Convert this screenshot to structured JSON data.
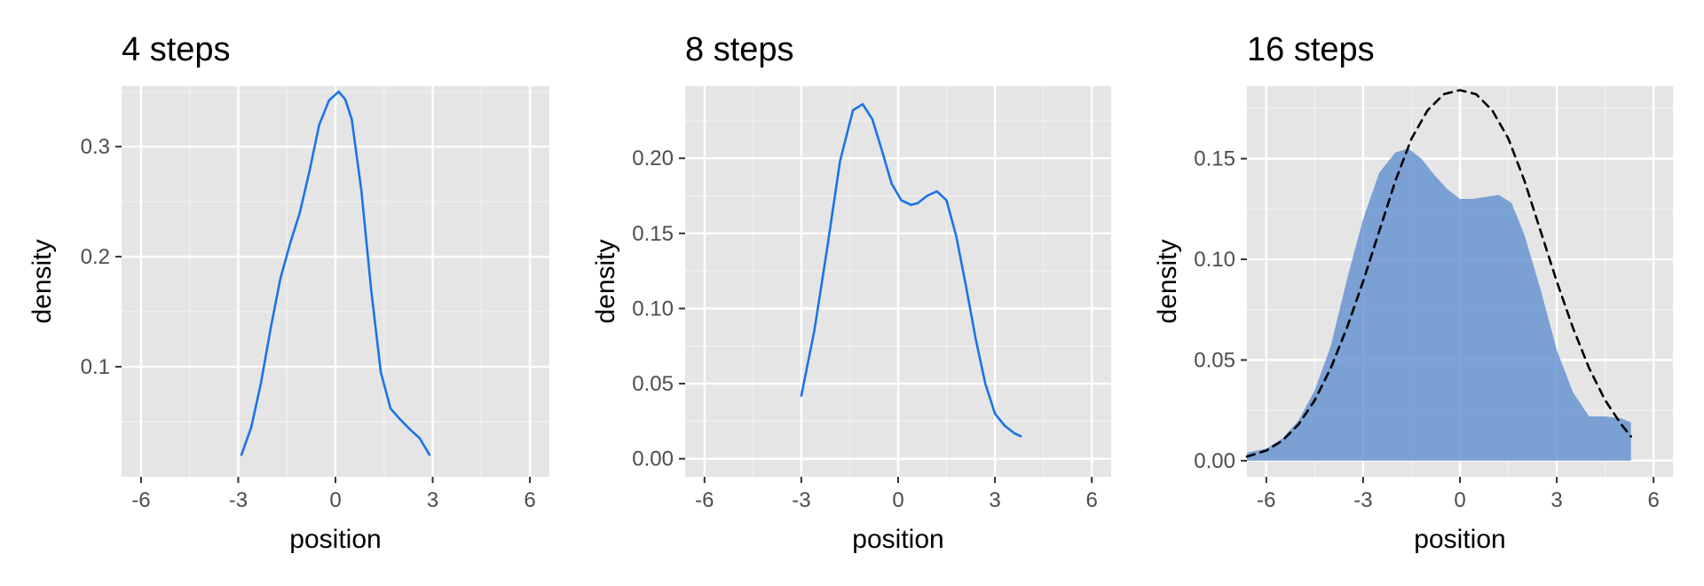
{
  "chart_data": [
    {
      "type": "line",
      "title": "4 steps",
      "xlabel": "position",
      "ylabel": "density",
      "xlim": [
        -6.6,
        6.6
      ],
      "ylim": [
        0.0,
        0.355
      ],
      "xticks": [
        -6,
        -3,
        0,
        3,
        6
      ],
      "xtick_labels": [
        "-6",
        "-3",
        "0",
        "3",
        "6"
      ],
      "yticks": [
        0.1,
        0.2,
        0.3
      ],
      "ytick_labels": [
        "0.1",
        "0.2",
        "0.3"
      ],
      "grid": true,
      "series": [
        {
          "color": "#1a73e8",
          "fill": false,
          "x": [
            -2.9,
            -2.6,
            -2.3,
            -2.0,
            -1.7,
            -1.4,
            -1.1,
            -0.8,
            -0.5,
            -0.2,
            0.1,
            0.3,
            0.5,
            0.8,
            1.1,
            1.4,
            1.7,
            2.0,
            2.3,
            2.6,
            2.9
          ],
          "y": [
            0.02,
            0.045,
            0.085,
            0.135,
            0.18,
            0.212,
            0.24,
            0.278,
            0.32,
            0.342,
            0.35,
            0.343,
            0.325,
            0.26,
            0.17,
            0.095,
            0.062,
            0.052,
            0.043,
            0.035,
            0.02
          ]
        }
      ]
    },
    {
      "type": "line",
      "title": "8 steps",
      "xlabel": "position",
      "ylabel": "density",
      "xlim": [
        -6.6,
        6.6
      ],
      "ylim": [
        -0.012,
        0.248
      ],
      "xticks": [
        -6,
        -3,
        0,
        3,
        6
      ],
      "xtick_labels": [
        "-6",
        "-3",
        "0",
        "3",
        "6"
      ],
      "yticks": [
        0.0,
        0.05,
        0.1,
        0.15,
        0.2
      ],
      "ytick_labels": [
        "0.00",
        "0.05",
        "0.10",
        "0.15",
        "0.20"
      ],
      "grid": true,
      "series": [
        {
          "color": "#1a73e8",
          "fill": false,
          "x": [
            -3.0,
            -2.6,
            -2.2,
            -1.8,
            -1.4,
            -1.1,
            -0.8,
            -0.5,
            -0.2,
            0.1,
            0.4,
            0.6,
            0.9,
            1.2,
            1.5,
            1.8,
            2.1,
            2.4,
            2.7,
            3.0,
            3.3,
            3.6,
            3.8
          ],
          "y": [
            0.042,
            0.085,
            0.14,
            0.198,
            0.232,
            0.236,
            0.226,
            0.205,
            0.183,
            0.172,
            0.169,
            0.17,
            0.175,
            0.178,
            0.172,
            0.148,
            0.115,
            0.08,
            0.05,
            0.03,
            0.022,
            0.017,
            0.015
          ]
        }
      ]
    },
    {
      "type": "area",
      "title": "16 steps",
      "xlabel": "position",
      "ylabel": "density",
      "xlim": [
        -6.6,
        6.6
      ],
      "ylim": [
        -0.008,
        0.186
      ],
      "xticks": [
        -6,
        -3,
        0,
        3,
        6
      ],
      "xtick_labels": [
        "-6",
        "-3",
        "0",
        "3",
        "6"
      ],
      "yticks": [
        0.0,
        0.05,
        0.1,
        0.15
      ],
      "ytick_labels": [
        "0.00",
        "0.05",
        "0.10",
        "0.15"
      ],
      "grid": true,
      "series": [
        {
          "color": "#5f8fd0",
          "fill": true,
          "x": [
            -6.6,
            -6.0,
            -5.5,
            -5.0,
            -4.5,
            -4.0,
            -3.5,
            -3.0,
            -2.5,
            -2.0,
            -1.6,
            -1.2,
            -0.8,
            -0.4,
            0.0,
            0.4,
            0.8,
            1.2,
            1.6,
            2.0,
            2.5,
            3.0,
            3.5,
            4.0,
            4.5,
            5.0,
            5.3
          ],
          "y": [
            0.004,
            0.006,
            0.011,
            0.02,
            0.035,
            0.057,
            0.09,
            0.12,
            0.143,
            0.153,
            0.155,
            0.15,
            0.142,
            0.135,
            0.13,
            0.13,
            0.131,
            0.132,
            0.128,
            0.112,
            0.085,
            0.055,
            0.034,
            0.022,
            0.022,
            0.021,
            0.019
          ]
        },
        {
          "color": "#000000",
          "fill": false,
          "dashed": true,
          "x": [
            -6.6,
            -6.0,
            -5.5,
            -5.0,
            -4.5,
            -4.0,
            -3.5,
            -3.0,
            -2.5,
            -2.0,
            -1.5,
            -1.0,
            -0.5,
            0.0,
            0.5,
            1.0,
            1.5,
            2.0,
            2.5,
            3.0,
            3.5,
            4.0,
            4.5,
            5.0,
            5.3
          ],
          "y": [
            0.002,
            0.005,
            0.01,
            0.018,
            0.03,
            0.046,
            0.066,
            0.089,
            0.114,
            0.139,
            0.16,
            0.174,
            0.182,
            0.184,
            0.182,
            0.174,
            0.16,
            0.139,
            0.114,
            0.089,
            0.066,
            0.046,
            0.03,
            0.018,
            0.012
          ]
        }
      ]
    }
  ]
}
